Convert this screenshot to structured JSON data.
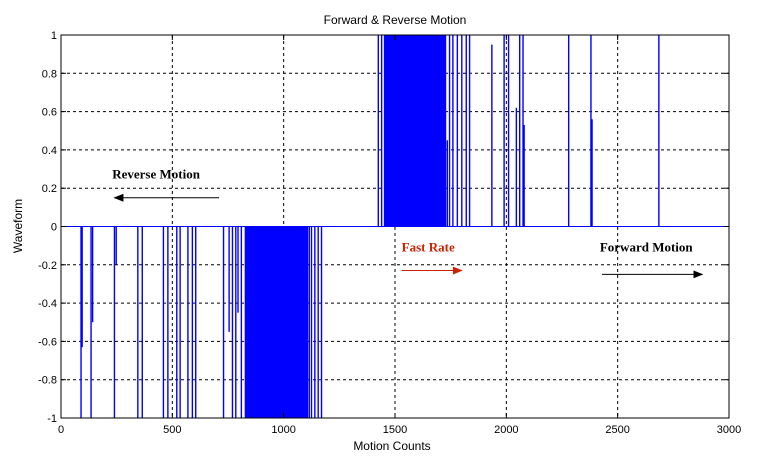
{
  "chart_data": {
    "type": "line",
    "title": "Forward & Reverse Motion",
    "xlabel": "Motion Counts",
    "ylabel": "Waveform",
    "xlim": [
      0,
      3000
    ],
    "ylim": [
      -1,
      1
    ],
    "grid": true,
    "x_ticks": [
      0,
      500,
      1000,
      1500,
      2000,
      2500,
      3000
    ],
    "y_ticks": [
      -1,
      -0.8,
      -0.6,
      -0.4,
      -0.2,
      0,
      0.2,
      0.4,
      0.6,
      0.8,
      1
    ],
    "x_tick_labels": [
      "0",
      "500",
      "1000",
      "1500",
      "2000",
      "2500",
      "3000"
    ],
    "y_tick_labels": [
      "-1",
      "-0.8",
      "-0.6",
      "-0.4",
      "-0.2",
      "0",
      "0.2",
      "0.4",
      "0.6",
      "0.8",
      "1"
    ],
    "series_color": "#0000ff",
    "reverse_pulses": {
      "sparse": [
        {
          "x": 90,
          "y": -1
        },
        {
          "x": 95,
          "y": -0.63
        },
        {
          "x": 135,
          "y": -1
        },
        {
          "x": 142,
          "y": -0.5
        },
        {
          "x": 240,
          "y": -1
        },
        {
          "x": 248,
          "y": -0.2
        },
        {
          "x": 345,
          "y": -1
        },
        {
          "x": 365,
          "y": -1
        },
        {
          "x": 460,
          "y": -1
        },
        {
          "x": 480,
          "y": -1
        },
        {
          "x": 520,
          "y": -1
        },
        {
          "x": 535,
          "y": -1
        },
        {
          "x": 570,
          "y": -1
        },
        {
          "x": 590,
          "y": -1
        },
        {
          "x": 605,
          "y": -1
        },
        {
          "x": 730,
          "y": -1
        },
        {
          "x": 755,
          "y": -0.55
        },
        {
          "x": 770,
          "y": -1
        },
        {
          "x": 785,
          "y": -1
        },
        {
          "x": 795,
          "y": -0.45
        },
        {
          "x": 810,
          "y": -1
        },
        {
          "x": 1115,
          "y": -1
        },
        {
          "x": 1125,
          "y": -1
        },
        {
          "x": 1140,
          "y": -1
        },
        {
          "x": 1155,
          "y": -1
        },
        {
          "x": 1170,
          "y": -1
        }
      ],
      "dense_range": [
        825,
        1110
      ]
    },
    "forward_pulses": {
      "dense_range": [
        1450,
        1730
      ],
      "sparse": [
        {
          "x": 1425,
          "y": 1
        },
        {
          "x": 1440,
          "y": 1
        },
        {
          "x": 1735,
          "y": 0.45
        },
        {
          "x": 1745,
          "y": 1
        },
        {
          "x": 1760,
          "y": 1
        },
        {
          "x": 1780,
          "y": 1
        },
        {
          "x": 1800,
          "y": 1
        },
        {
          "x": 1820,
          "y": 1
        },
        {
          "x": 1835,
          "y": 1
        },
        {
          "x": 1935,
          "y": 0.95
        },
        {
          "x": 1990,
          "y": 1
        },
        {
          "x": 2010,
          "y": 1
        },
        {
          "x": 2045,
          "y": 0.62
        },
        {
          "x": 2060,
          "y": 1
        },
        {
          "x": 2075,
          "y": 1
        },
        {
          "x": 2080,
          "y": 0.53
        },
        {
          "x": 2280,
          "y": 1
        },
        {
          "x": 2380,
          "y": 1
        },
        {
          "x": 2385,
          "y": 0.56
        },
        {
          "x": 2685,
          "y": 1
        }
      ]
    },
    "annotations": [
      {
        "text": "Reverse Motion",
        "x": 230,
        "y": 0.25,
        "color": "#000000",
        "arrow": {
          "from": 710,
          "to": 240,
          "y": 0.15
        }
      },
      {
        "text": "Fast Rate",
        "x": 1530,
        "y": -0.13,
        "color": "#cc2200",
        "arrow": {
          "from": 1530,
          "to": 1800,
          "y": -0.23
        }
      },
      {
        "text": "Forward Motion",
        "x": 2420,
        "y": -0.13,
        "color": "#000000",
        "arrow": {
          "from": 2430,
          "to": 2880,
          "y": -0.25
        }
      }
    ]
  }
}
